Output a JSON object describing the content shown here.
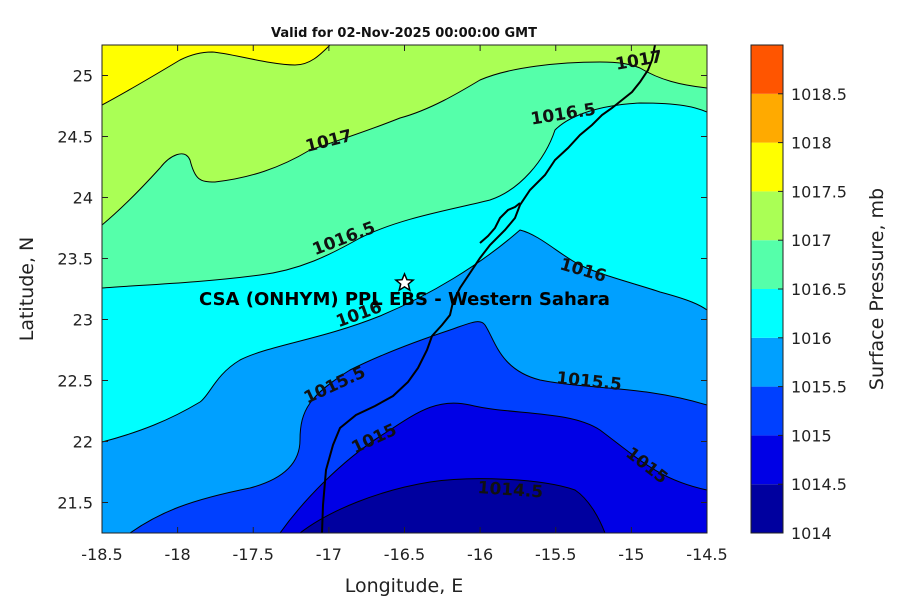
{
  "chart_data": {
    "type": "contour",
    "title": "Valid for 02-Nov-2025 00:00:00 GMT",
    "xlabel": "Longitude, E",
    "ylabel": "Latitude, N",
    "xlim": [
      -18.5,
      -14.5
    ],
    "ylim": [
      21.25,
      25.25
    ],
    "x_ticks": [
      "-18.5",
      "-18",
      "-17.5",
      "-17",
      "-16.5",
      "-16",
      "-15.5",
      "-15",
      "-14.5"
    ],
    "y_ticks": [
      "21.5",
      "22",
      "22.5",
      "23",
      "23.5",
      "24",
      "24.5",
      "25"
    ],
    "contour_levels": [
      1014.5,
      1015,
      1015.5,
      1016,
      1016.5,
      1017,
      1017.5
    ],
    "contour_labels": [
      {
        "text": "1017",
        "lon": -14.95,
        "lat": 25.12
      },
      {
        "text": "1016.5",
        "lon": -15.45,
        "lat": 24.68
      },
      {
        "text": "1017",
        "lon": -17.0,
        "lat": 24.46
      },
      {
        "text": "1016.5",
        "lon": -16.9,
        "lat": 23.66
      },
      {
        "text": "1016",
        "lon": -15.32,
        "lat": 23.4
      },
      {
        "text": "1016",
        "lon": -16.8,
        "lat": 23.04
      },
      {
        "text": "1015.5",
        "lon": -16.96,
        "lat": 22.46
      },
      {
        "text": "1015.5",
        "lon": -15.28,
        "lat": 22.49
      },
      {
        "text": "1015",
        "lon": -16.7,
        "lat": 22.02
      },
      {
        "text": "1015",
        "lon": -14.9,
        "lat": 21.8
      },
      {
        "text": "1014.5",
        "lon": -15.8,
        "lat": 21.6
      }
    ],
    "station": {
      "name": "CSA (ONHYM) PPL EBS - Western Sahara",
      "lon": -16.5,
      "lat": 23.3
    },
    "colorbar": {
      "label": "Surface Pressure, mb",
      "ticks": [
        "1014",
        "1014.5",
        "1015",
        "1015.5",
        "1016",
        "1016.5",
        "1017",
        "1017.5",
        "1018",
        "1018.5"
      ],
      "colors": [
        "#00009f",
        "#0000e6",
        "#0040ff",
        "#00a0ff",
        "#00ffff",
        "#55ffaa",
        "#aaff55",
        "#ffff00",
        "#ffaa00",
        "#ff5500"
      ]
    }
  }
}
